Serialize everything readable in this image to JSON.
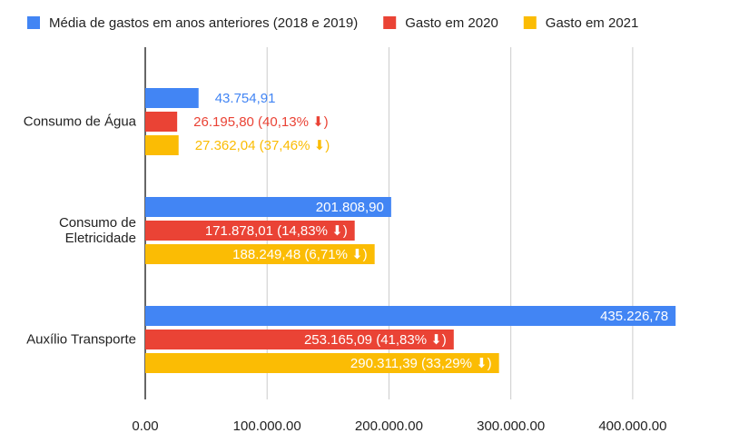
{
  "chart_data": {
    "type": "hbar",
    "categories": [
      "Consumo de Água",
      "Consumo de Eletricidade",
      "Auxílio Transporte"
    ],
    "series": [
      {
        "name": "Média de gastos em anos anteriores (2018 e 2019)",
        "color": "#4285f4",
        "values": [
          43754.91,
          201808.9,
          435226.78
        ],
        "value_labels": [
          "43.754,91",
          "201.808,90",
          "435.226,78"
        ]
      },
      {
        "name": "Gasto em 2020",
        "color": "#ea4335",
        "values": [
          26195.8,
          171878.01,
          253165.09
        ],
        "value_labels": [
          "26.195,80 (40,13% ⬇)",
          "171.878,01 (14,83% ⬇)",
          "253.165,09 (41,83% ⬇)"
        ]
      },
      {
        "name": "Gasto em 2021",
        "color": "#fbbc04",
        "values": [
          27362.04,
          188249.48,
          290311.39
        ],
        "value_labels": [
          "27.362,04 (37,46% ⬇)",
          "188.249,48 (6,71% ⬇)",
          "290.311,39 (33,29% ⬇)"
        ]
      }
    ],
    "xlim": [
      0,
      450000
    ],
    "xticks": [
      {
        "value": 0,
        "label": "0.00"
      },
      {
        "value": 100000,
        "label": "100.000.00"
      },
      {
        "value": 200000,
        "label": "200.000.00"
      },
      {
        "value": 300000,
        "label": "300.000.00"
      },
      {
        "value": 400000,
        "label": "400.000.00"
      }
    ],
    "grid": true,
    "legend": "top"
  }
}
